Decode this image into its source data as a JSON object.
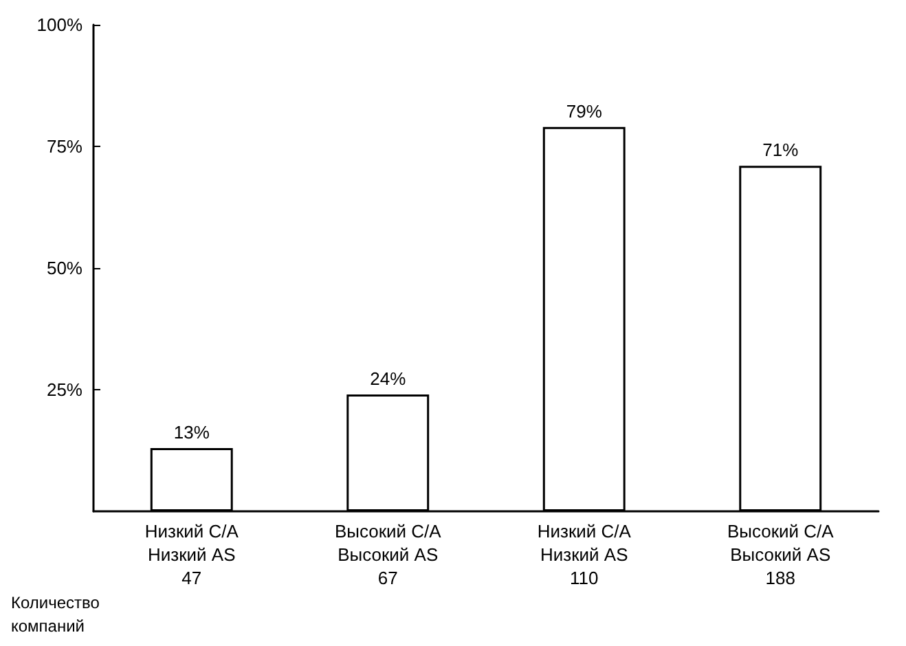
{
  "chart_data": {
    "type": "bar",
    "categories": [
      "Низкий C/A\nНизкий AS\n47",
      "Высокий C/A\nВысокий AS\n67",
      "Низкий C/A\nНизкий AS\n110",
      "Высокий C/A\nВысокий AS\n188"
    ],
    "values": [
      13,
      24,
      79,
      71
    ],
    "value_labels": [
      "13%",
      "24%",
      "79%",
      "71%"
    ],
    "color": "#ffffff",
    "ylim": [
      0,
      100
    ],
    "yticks": [
      {
        "value": 25,
        "label": "25%"
      },
      {
        "value": 50,
        "label": "50%"
      },
      {
        "value": 75,
        "label": "75%"
      },
      {
        "value": 100,
        "label": "100%"
      }
    ],
    "annotations": [
      "Количество\nкомпаний"
    ]
  }
}
